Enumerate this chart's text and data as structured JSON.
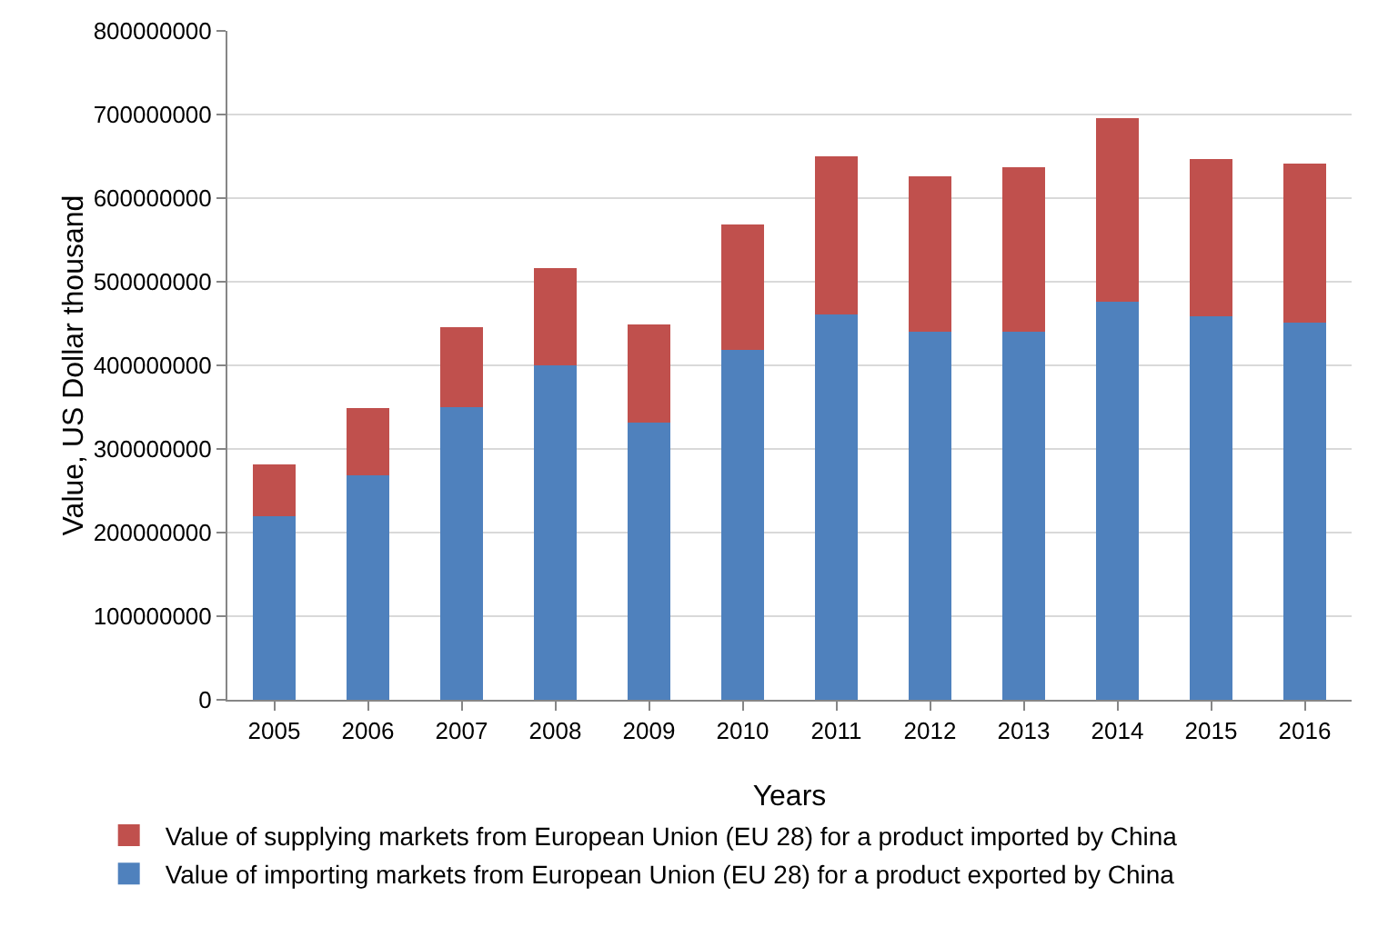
{
  "chart_data": {
    "type": "bar",
    "stacked": true,
    "xlabel": "Years",
    "ylabel": "Value, US Dollar thousand",
    "categories": [
      "2005",
      "2006",
      "2007",
      "2008",
      "2009",
      "2010",
      "2011",
      "2012",
      "2013",
      "2014",
      "2015",
      "2016"
    ],
    "series": [
      {
        "name": "Value of importing markets from European Union (EU 28) for a product exported by China",
        "color": "#4f81bd",
        "values": [
          220000000,
          268000000,
          350000000,
          400000000,
          332000000,
          419000000,
          461000000,
          440000000,
          440000000,
          476000000,
          459000000,
          451000000
        ]
      },
      {
        "name": "Value of supplying markets from European Union (EU 28) for a product imported by China",
        "color": "#c0504d",
        "values": [
          62000000,
          81000000,
          96000000,
          116000000,
          117000000,
          150000000,
          189000000,
          186000000,
          197000000,
          220000000,
          188000000,
          190000000
        ]
      }
    ],
    "ylim": [
      0,
      800000000
    ],
    "yticks": [
      0,
      100000000,
      200000000,
      300000000,
      400000000,
      500000000,
      600000000,
      700000000,
      800000000
    ],
    "grid": "y",
    "legend": "bottom"
  }
}
